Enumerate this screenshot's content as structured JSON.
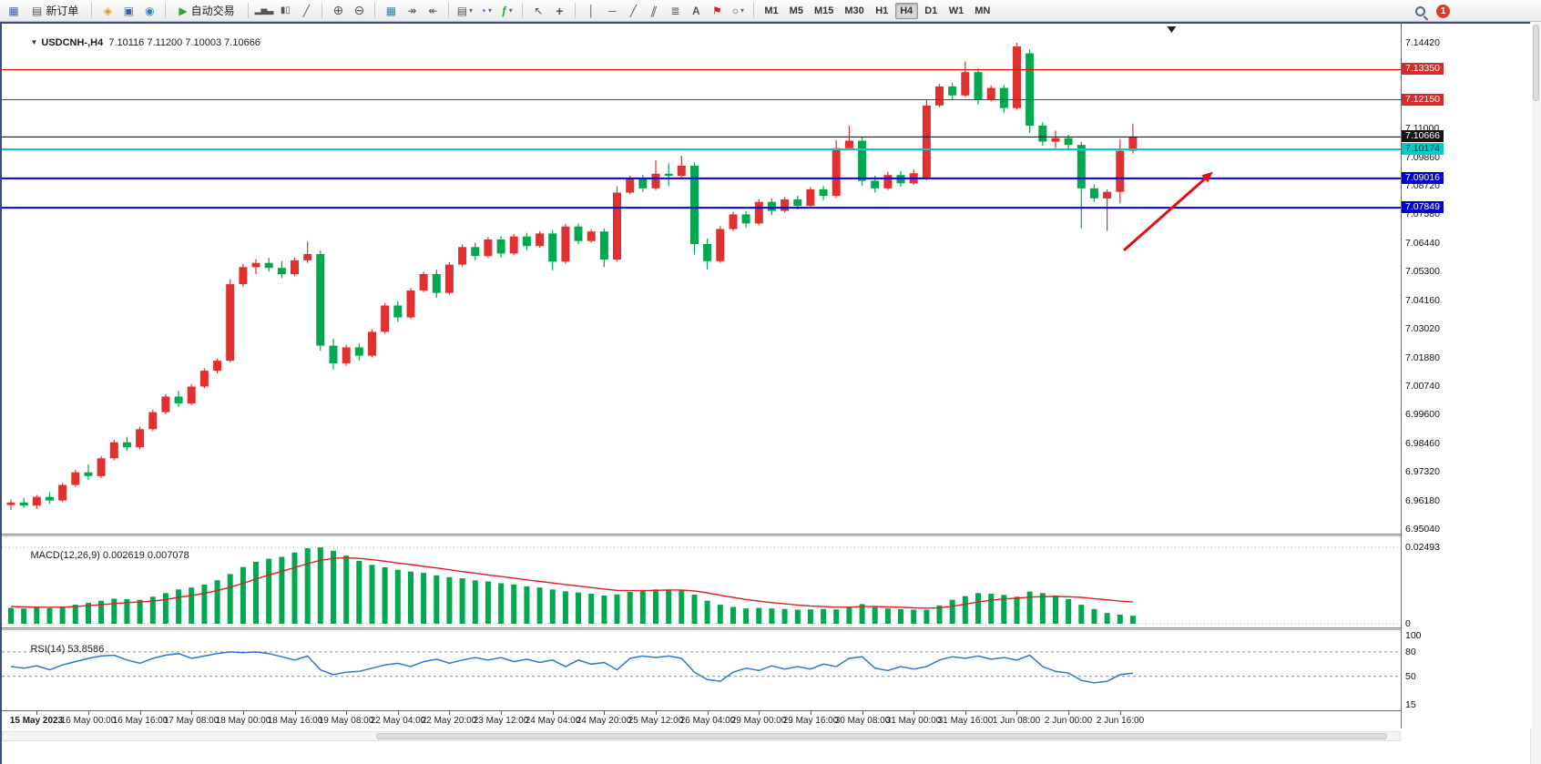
{
  "toolbar": {
    "new_order_label": "新订单",
    "autotrade_label": "自动交易",
    "timeframes": [
      "M1",
      "M5",
      "M15",
      "M30",
      "H1",
      "H4",
      "D1",
      "W1",
      "MN"
    ],
    "active_timeframe": "H4",
    "notification_count": "1",
    "icons": {
      "caret": "▾",
      "chart_window": "▦",
      "new_order": "▤",
      "market_watch": "◈",
      "data_window": "▣",
      "navigator": "◉",
      "autotrade_play": "▶",
      "bar_chart": "▂▅▃",
      "candle_chart": "▮▯",
      "line_chart": "╱",
      "zoom_in": "⊕",
      "zoom_out": "⊖",
      "tile_windows": "▦",
      "auto_scroll": "↠",
      "chart_shift": "↞",
      "templates": "▤",
      "period_clock": "◔",
      "indicators": "ƒ",
      "cursor": "↖",
      "crosshair": "+",
      "vline": "│",
      "hline": "─",
      "trendline": "╱",
      "channel": "∥",
      "fibonacci": "≣",
      "text_tool": "A",
      "label_tool": "⚑",
      "shapes": "○"
    }
  },
  "chart": {
    "collapse_icon": "▼",
    "title": "USDCNH-,H4",
    "ohlc_text": "7.10116 7.11200 7.10003 7.10666"
  },
  "chart_data": {
    "type": "candlestick",
    "symbol": "USDCNH-",
    "timeframe": "H4",
    "current": {
      "open": 7.10116,
      "high": 7.112,
      "low": 7.10003,
      "close": 7.10666
    },
    "colors": {
      "bull": "#E03030",
      "bear": "#00A94F",
      "background": "#FFFFFF"
    },
    "main": {
      "price_top": 7.1442,
      "price_bottom": 6.9504,
      "shift_marker_index": 90,
      "axis_ticks": [
        "7.14420",
        "7.13280",
        "7.12140",
        "7.11000",
        "7.09860",
        "7.08720",
        "7.07580",
        "7.06440",
        "7.05300",
        "7.04160",
        "7.03020",
        "7.01880",
        "7.00740",
        "6.99600",
        "6.98460",
        "6.97320",
        "6.96180",
        "6.95040"
      ]
    },
    "hlines": [
      {
        "price": 7.1335,
        "label": "7.13350",
        "color": "#FF0000",
        "width": 1,
        "badge_bg": "#D62B2B",
        "badge_fg": "#FFFFFF"
      },
      {
        "price": 7.1215,
        "label": "7.12150",
        "color": "#FF0000",
        "width": 1,
        "badge_bg": "#D62B2B",
        "badge_fg": "#FFFFFF"
      },
      {
        "price": 7.10666,
        "label": "7.10666",
        "color": "#000000",
        "width": 1,
        "badge_bg": "#141414",
        "badge_fg": "#FFFFFF"
      },
      {
        "price": 7.10174,
        "label": "7.10174",
        "color": "#00CCCC",
        "width": 2,
        "badge_bg": "#00CCCC",
        "badge_fg": "#093a3a"
      },
      {
        "price": 7.09016,
        "label": "7.09016",
        "color": "#0000E8",
        "width": 2,
        "badge_bg": "#0000D0",
        "badge_fg": "#FFFFFF"
      },
      {
        "price": 7.07849,
        "label": "7.07849",
        "color": "#0000E8",
        "width": 2,
        "badge_bg": "#0000D0",
        "badge_fg": "#FFFFFF"
      }
    ],
    "arrow": {
      "from_index": 86.3,
      "from_price": 7.0615,
      "to_index": 93.2,
      "to_price": 7.0928,
      "color": "#E01010"
    },
    "time_labels": [
      "15 May 2023",
      "16 May 00:00",
      "16 May 16:00",
      "17 May 08:00",
      "18 May 00:00",
      "18 May 16:00",
      "19 May 08:00",
      "22 May 04:00",
      "22 May 20:00",
      "23 May 12:00",
      "24 May 04:00",
      "24 May 20:00",
      "25 May 12:00",
      "26 May 04:00",
      "29 May 00:00",
      "29 May 16:00",
      "30 May 08:00",
      "31 May 00:00",
      "31 May 16:00",
      "1 Jun 08:00",
      "2 Jun 00:00",
      "2 Jun 16:00"
    ],
    "candles": [
      [
        6.96,
        6.9622,
        6.958,
        6.961
      ],
      [
        6.961,
        6.9628,
        6.9588,
        6.9598
      ],
      [
        6.9598,
        6.964,
        6.9585,
        6.9632
      ],
      [
        6.9632,
        6.965,
        6.9605,
        6.9618
      ],
      [
        6.9618,
        6.9688,
        6.9612,
        6.968
      ],
      [
        6.968,
        6.974,
        6.9672,
        6.973
      ],
      [
        6.973,
        6.9762,
        6.97,
        6.9715
      ],
      [
        6.9715,
        6.9795,
        6.9708,
        6.9786
      ],
      [
        6.9786,
        6.986,
        6.9778,
        6.985
      ],
      [
        6.985,
        6.9872,
        6.9815,
        6.983
      ],
      [
        6.983,
        6.9912,
        6.9822,
        6.9902
      ],
      [
        6.9902,
        6.998,
        6.9895,
        6.997
      ],
      [
        6.997,
        7.0042,
        6.9962,
        7.0032
      ],
      [
        7.0032,
        7.0055,
        6.999,
        7.0005
      ],
      [
        7.0005,
        7.0082,
        6.9998,
        7.0072
      ],
      [
        7.0072,
        7.0145,
        7.0065,
        7.0135
      ],
      [
        7.0135,
        7.0185,
        7.0125,
        7.0175
      ],
      [
        7.0175,
        7.05,
        7.0168,
        7.048
      ],
      [
        7.048,
        7.056,
        7.047,
        7.0548
      ],
      [
        7.0548,
        7.058,
        7.052,
        7.0565
      ],
      [
        7.0565,
        7.0585,
        7.053,
        7.0545
      ],
      [
        7.0545,
        7.0572,
        7.0505,
        7.052
      ],
      [
        7.052,
        7.0585,
        7.0512,
        7.0575
      ],
      [
        7.0575,
        7.065,
        7.0565,
        7.06
      ],
      [
        7.06,
        7.0615,
        7.0215,
        7.0235
      ],
      [
        7.0235,
        7.0262,
        7.014,
        7.0165
      ],
      [
        7.0165,
        7.0238,
        7.0155,
        7.0228
      ],
      [
        7.0228,
        7.0245,
        7.0175,
        7.0195
      ],
      [
        7.0195,
        7.03,
        7.0188,
        7.029
      ],
      [
        7.029,
        7.0405,
        7.0282,
        7.0395
      ],
      [
        7.0395,
        7.0412,
        7.033,
        7.0348
      ],
      [
        7.0348,
        7.0465,
        7.034,
        7.0455
      ],
      [
        7.0455,
        7.053,
        7.0448,
        7.052
      ],
      [
        7.052,
        7.0538,
        7.0425,
        7.0445
      ],
      [
        7.0445,
        7.0568,
        7.0438,
        7.0558
      ],
      [
        7.0558,
        7.0638,
        7.055,
        7.0628
      ],
      [
        7.0628,
        7.0645,
        7.0575,
        7.0592
      ],
      [
        7.0592,
        7.0668,
        7.0585,
        7.0658
      ],
      [
        7.0658,
        7.0672,
        7.0585,
        7.0602
      ],
      [
        7.0602,
        7.068,
        7.0595,
        7.067
      ],
      [
        7.067,
        7.0685,
        7.0615,
        7.0632
      ],
      [
        7.0632,
        7.0692,
        7.0625,
        7.0682
      ],
      [
        7.0682,
        7.0695,
        7.0535,
        7.057
      ],
      [
        7.057,
        7.072,
        7.0562,
        7.071
      ],
      [
        7.071,
        7.0722,
        7.0638,
        7.0652
      ],
      [
        7.0652,
        7.07,
        7.0645,
        7.069
      ],
      [
        7.069,
        7.0702,
        7.0548,
        7.0578
      ],
      [
        7.0578,
        7.087,
        7.057,
        7.0845
      ],
      [
        7.0845,
        7.0912,
        7.0838,
        7.09
      ],
      [
        7.09,
        7.0915,
        7.0848,
        7.0862
      ],
      [
        7.0862,
        7.0975,
        7.0855,
        7.092
      ],
      [
        7.092,
        7.0962,
        7.087,
        7.0912
      ],
      [
        7.0912,
        7.0992,
        7.0905,
        7.0952
      ],
      [
        7.0952,
        7.0965,
        7.0598,
        7.064
      ],
      [
        7.064,
        7.0662,
        7.0538,
        7.0572
      ],
      [
        7.0572,
        7.0712,
        7.0565,
        7.07
      ],
      [
        7.07,
        7.0768,
        7.0692,
        7.0758
      ],
      [
        7.0758,
        7.0772,
        7.0705,
        7.0722
      ],
      [
        7.0722,
        7.0818,
        7.0715,
        7.0808
      ],
      [
        7.0808,
        7.0822,
        7.0755,
        7.0772
      ],
      [
        7.0772,
        7.0828,
        7.0765,
        7.0818
      ],
      [
        7.0818,
        7.0832,
        7.0778,
        7.0792
      ],
      [
        7.0792,
        7.0868,
        7.0785,
        7.0858
      ],
      [
        7.0858,
        7.0872,
        7.0815,
        7.0832
      ],
      [
        7.0832,
        7.1055,
        7.0825,
        7.1022
      ],
      [
        7.1022,
        7.1112,
        7.1015,
        7.1052
      ],
      [
        7.1052,
        7.1065,
        7.0872,
        7.0892
      ],
      [
        7.0892,
        7.0912,
        7.0845,
        7.0862
      ],
      [
        7.0862,
        7.0928,
        7.0855,
        7.0915
      ],
      [
        7.0915,
        7.093,
        7.0868,
        7.0882
      ],
      [
        7.0882,
        7.0938,
        7.0875,
        7.0922
      ],
      [
        7.0902,
        7.1215,
        7.0895,
        7.1192
      ],
      [
        7.1192,
        7.1278,
        7.1185,
        7.1268
      ],
      [
        7.1268,
        7.1282,
        7.1215,
        7.1232
      ],
      [
        7.1232,
        7.1368,
        7.1225,
        7.1325
      ],
      [
        7.1325,
        7.134,
        7.1195,
        7.1215
      ],
      [
        7.1215,
        7.1272,
        7.1208,
        7.1262
      ],
      [
        7.1262,
        7.1275,
        7.1162,
        7.1182
      ],
      [
        7.1182,
        7.1442,
        7.1175,
        7.1428
      ],
      [
        7.14,
        7.1415,
        7.1082,
        7.1112
      ],
      [
        7.1112,
        7.1125,
        7.1032,
        7.1048
      ],
      [
        7.1048,
        7.1092,
        7.1022,
        7.1062
      ],
      [
        7.1062,
        7.1075,
        7.1018,
        7.1035
      ],
      [
        7.1035,
        7.1048,
        7.0702,
        7.0862
      ],
      [
        7.0862,
        7.0878,
        7.0808,
        7.0822
      ],
      [
        7.0822,
        7.0858,
        7.0692,
        7.0848
      ],
      [
        7.0848,
        7.1058,
        7.0802,
        7.1012
      ],
      [
        7.10116,
        7.112,
        7.10003,
        7.10666
      ]
    ],
    "macd": {
      "label": "MACD(12,26,9)",
      "values_text": "0.002619 0.007078",
      "macd_value": 0.002619,
      "signal_value": 0.007078,
      "scale_max": 0.02493,
      "axis_ticks": [
        "0.02493",
        "0"
      ],
      "histogram_color": "#00A94F",
      "signal_color": "#E02020",
      "histogram": [
        0.0052,
        0.005,
        0.0053,
        0.0051,
        0.0056,
        0.0062,
        0.0068,
        0.0075,
        0.0082,
        0.008,
        0.0078,
        0.0088,
        0.01,
        0.0112,
        0.0118,
        0.0128,
        0.0142,
        0.0162,
        0.0185,
        0.0202,
        0.0212,
        0.0218,
        0.0232,
        0.0246,
        0.0249,
        0.0238,
        0.0222,
        0.0205,
        0.0192,
        0.0184,
        0.0176,
        0.017,
        0.0166,
        0.0158,
        0.0152,
        0.0148,
        0.0142,
        0.0138,
        0.0132,
        0.0128,
        0.0122,
        0.0118,
        0.0112,
        0.0106,
        0.0102,
        0.0098,
        0.0092,
        0.0096,
        0.0104,
        0.011,
        0.0112,
        0.0112,
        0.011,
        0.0095,
        0.0075,
        0.0062,
        0.0055,
        0.005,
        0.0052,
        0.005,
        0.0048,
        0.0046,
        0.0047,
        0.0048,
        0.0047,
        0.0056,
        0.0064,
        0.0058,
        0.005,
        0.0048,
        0.0046,
        0.0046,
        0.006,
        0.0078,
        0.009,
        0.01,
        0.0098,
        0.0094,
        0.0088,
        0.0105,
        0.01,
        0.0092,
        0.008,
        0.0062,
        0.0048,
        0.0035,
        0.003,
        0.0026
      ],
      "signal": [
        0.0056,
        0.0055,
        0.0054,
        0.0054,
        0.0054,
        0.0056,
        0.0059,
        0.0062,
        0.0066,
        0.0069,
        0.0071,
        0.0074,
        0.0079,
        0.0086,
        0.0092,
        0.0099,
        0.0108,
        0.0119,
        0.0132,
        0.0146,
        0.0159,
        0.0171,
        0.0183,
        0.0196,
        0.0207,
        0.0213,
        0.0215,
        0.0213,
        0.0209,
        0.0204,
        0.0198,
        0.0193,
        0.0187,
        0.0182,
        0.0176,
        0.017,
        0.0165,
        0.0159,
        0.0154,
        0.0149,
        0.0143,
        0.0138,
        0.0133,
        0.0128,
        0.0123,
        0.0118,
        0.0113,
        0.0109,
        0.0108,
        0.0108,
        0.0109,
        0.011,
        0.011,
        0.0107,
        0.0101,
        0.0093,
        0.0086,
        0.0079,
        0.0074,
        0.0069,
        0.0065,
        0.0061,
        0.0058,
        0.0056,
        0.0054,
        0.0054,
        0.0056,
        0.0056,
        0.0055,
        0.0054,
        0.0052,
        0.0051,
        0.0052,
        0.0057,
        0.0064,
        0.0071,
        0.0077,
        0.0081,
        0.0083,
        0.0087,
        0.0088,
        0.0089,
        0.0088,
        0.0086,
        0.0082,
        0.0078,
        0.0074,
        0.0071
      ]
    },
    "rsi": {
      "label": "RSI(14)",
      "value": "53.8586",
      "levels": [
        80,
        50
      ],
      "axis_ticks": [
        "100",
        "80",
        "50",
        "15"
      ],
      "scale_min": 15,
      "scale_max": 100,
      "line_color": "#2E76D6",
      "series": [
        62,
        60,
        63,
        58,
        64,
        68,
        72,
        75,
        76,
        70,
        66,
        72,
        76,
        78,
        72,
        75,
        78,
        80,
        79,
        80,
        78,
        74,
        70,
        75,
        58,
        52,
        55,
        56,
        60,
        64,
        66,
        62,
        68,
        71,
        66,
        70,
        73,
        70,
        73,
        68,
        71,
        67,
        70,
        62,
        70,
        65,
        67,
        58,
        72,
        75,
        73,
        75,
        72,
        55,
        46,
        44,
        55,
        60,
        57,
        63,
        59,
        62,
        59,
        65,
        62,
        72,
        74,
        60,
        57,
        62,
        59,
        62,
        70,
        74,
        72,
        75,
        71,
        73,
        70,
        76,
        62,
        56,
        54,
        45,
        42,
        44,
        52,
        53.86
      ]
    }
  }
}
